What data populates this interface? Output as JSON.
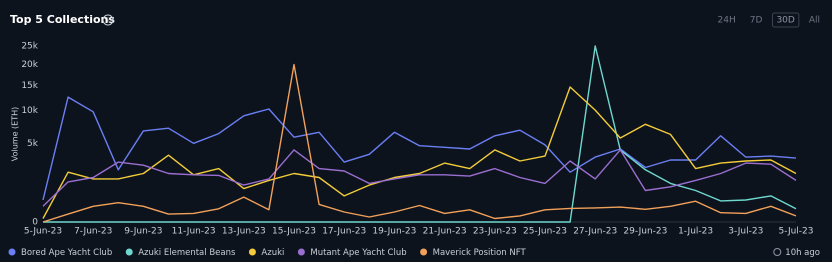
{
  "header": {
    "title": "Top 5 Collections",
    "info_icon": "i"
  },
  "controls": [
    "24H",
    "7D",
    "30D",
    "All"
  ],
  "selected_control": 2,
  "updated": "10h ago",
  "chart_data": {
    "type": "line",
    "scale": "sqrt",
    "y_label": "Volume (ETH)",
    "categories": [
      "5-Jun-23",
      null,
      "7-Jun-23",
      null,
      "9-Jun-23",
      null,
      "11-Jun-23",
      null,
      "13-Jun-23",
      null,
      "15-Jun-23",
      null,
      "17-Jun-23",
      null,
      "19-Jun-23",
      null,
      "21-Jun-23",
      null,
      "23-Jun-23",
      null,
      "25-Jun-23",
      null,
      "27-Jun-23",
      null,
      "29-Jun-23",
      null,
      "1-Jul-23",
      null,
      "3-Jul-23",
      null,
      "5-Jul-23"
    ],
    "ylim": [
      0,
      25000
    ],
    "yticks": [
      0,
      {
        "value": 5000,
        "label": "5k"
      },
      {
        "value": 10000,
        "label": "10k"
      },
      {
        "value": 15000,
        "label": "15k"
      },
      {
        "value": 20000,
        "label": "20k"
      },
      {
        "value": 25000,
        "label": "25k"
      }
    ],
    "series": [
      {
        "name": "Bored Ape Yacht Club",
        "color": "#6b7ff5",
        "values": [
          390,
          12600,
          9800,
          2200,
          6700,
          7100,
          5000,
          6300,
          9100,
          10300,
          5800,
          6500,
          2900,
          3700,
          6500,
          4700,
          4500,
          4300,
          6000,
          6800,
          4800,
          2000,
          3400,
          4300,
          2400,
          3100,
          3100,
          6000,
          3400,
          3500,
          3300
        ]
      },
      {
        "name": "Azuki Elemental Beans",
        "color": "#6ed8cf",
        "values": [
          0,
          0,
          0,
          0,
          0,
          0,
          0,
          0,
          0,
          0,
          0,
          0,
          0,
          0,
          0,
          0,
          0,
          0,
          0,
          0,
          0,
          0,
          25000,
          4200,
          2200,
          1200,
          800,
          360,
          390,
          550,
          140
        ]
      },
      {
        "name": "Azuki",
        "color": "#f2cc3a",
        "values": [
          10,
          2000,
          1500,
          1500,
          1900,
          3600,
          1800,
          2300,
          900,
          1400,
          1900,
          1600,
          550,
          1100,
          1600,
          1900,
          2800,
          2300,
          4200,
          3000,
          3500,
          14700,
          10100,
          5700,
          7700,
          6200,
          2300,
          2800,
          3000,
          3100,
          1900
        ]
      },
      {
        "name": "Mutant Ape Yacht Club",
        "color": "#9b6fd1",
        "values": [
          200,
          1300,
          1600,
          2900,
          2600,
          1900,
          1800,
          1750,
          1100,
          1500,
          4200,
          2300,
          2100,
          1200,
          1500,
          1800,
          1800,
          1700,
          2300,
          1600,
          1200,
          3000,
          1500,
          4200,
          800,
          1000,
          1400,
          1900,
          2800,
          2700,
          1400
        ]
      },
      {
        "name": "Maverick Position NFT",
        "color": "#f2a15a",
        "values": [
          0,
          50,
          200,
          300,
          200,
          50,
          60,
          140,
          500,
          120,
          20000,
          250,
          80,
          20,
          80,
          220,
          60,
          120,
          10,
          30,
          120,
          150,
          160,
          180,
          130,
          200,
          350,
          70,
          60,
          200,
          30
        ]
      }
    ]
  }
}
